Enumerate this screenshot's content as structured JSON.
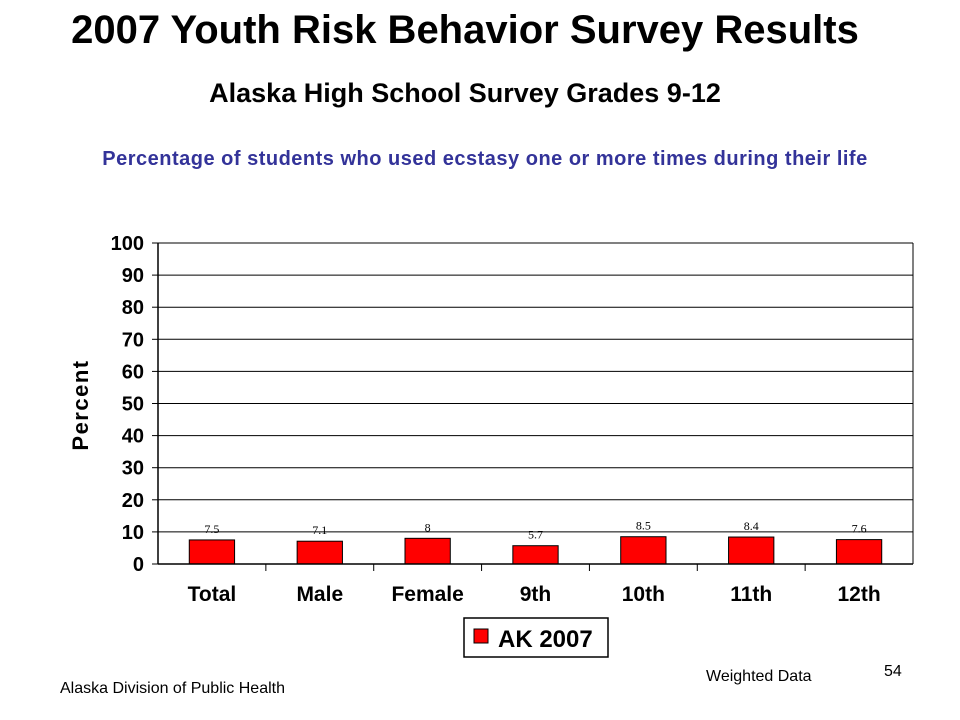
{
  "title": "2007 Youth Risk Behavior Survey Results",
  "subtitle": "Alaska High School Survey Grades 9-12",
  "chart_data": {
    "type": "bar",
    "title": "Percentage of students who used ecstasy one or more times during their life",
    "xlabel": "",
    "ylabel": "Percent",
    "ylim": [
      0,
      100
    ],
    "yticks": [
      0,
      10,
      20,
      30,
      40,
      50,
      60,
      70,
      80,
      90,
      100
    ],
    "grid": true,
    "categories": [
      "Total",
      "Male",
      "Female",
      "9th",
      "10th",
      "11th",
      "12th"
    ],
    "series": [
      {
        "name": "AK 2007",
        "values": [
          7.5,
          7.1,
          8,
          5.7,
          8.5,
          8.4,
          7.6
        ],
        "color": "#ff0000"
      }
    ],
    "data_labels": [
      "7.5",
      "7.1",
      "8",
      "5.7",
      "8.5",
      "8.4",
      "7.6"
    ],
    "legend_position": "bottom"
  },
  "footer": {
    "source": "Alaska Division of Public Health",
    "note": "Weighted Data",
    "page_number": "54"
  }
}
